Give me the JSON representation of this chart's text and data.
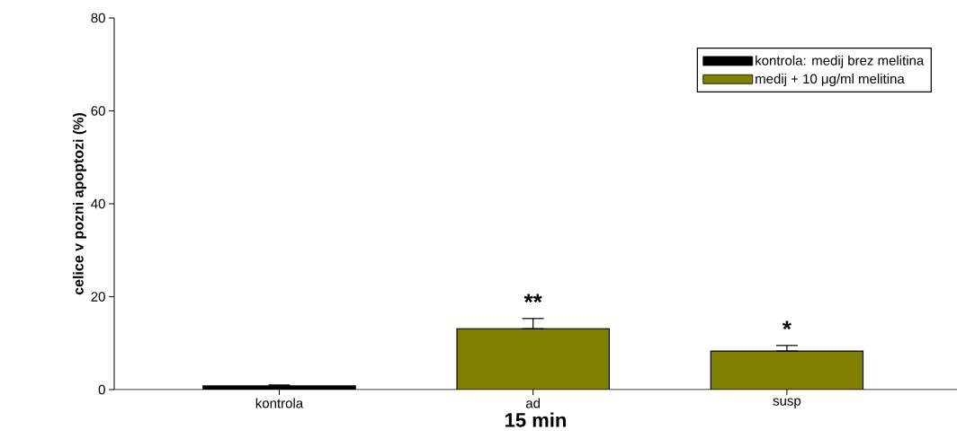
{
  "chart_data": {
    "type": "bar",
    "ylabel": "celice v pozni apoptozi (%)",
    "xlabel": "15 min",
    "categories": [
      "kontrola",
      "ad",
      "susp"
    ],
    "series": [
      {
        "name": "kontrola: medij brez melitina",
        "color": "#000000",
        "values": [
          0.8,
          null,
          null
        ],
        "errors": [
          [
            0.8,
            1.0
          ],
          null,
          null
        ]
      },
      {
        "name": "medij + 10 μg/ml melitina",
        "color": "#808000",
        "values": [
          null,
          13.1,
          8.3
        ],
        "errors": [
          null,
          [
            13.1,
            15.3
          ],
          [
            8.3,
            9.5
          ]
        ]
      }
    ],
    "ylim": [
      0,
      80
    ],
    "yticks": [
      0,
      20,
      40,
      60,
      80
    ],
    "grid": false,
    "legend": "top right",
    "annotations": [
      "**",
      "*"
    ]
  }
}
